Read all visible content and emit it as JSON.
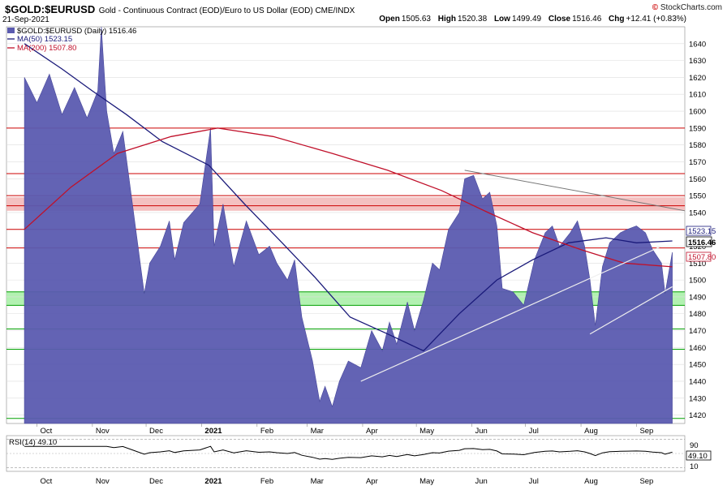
{
  "header": {
    "symbol": "$GOLD:$EURUSD",
    "description": "Gold - Continuous Contract (EOD)/Euro to US Dollar (EOD)  CME/INDX",
    "date": "21-Sep-2021",
    "brand": "StockCharts.com",
    "brand_mark": "©"
  },
  "ohlc": {
    "open_label": "Open",
    "open": "1505.63",
    "high_label": "High",
    "high": "1520.38",
    "low_label": "Low",
    "low": "1499.49",
    "close_label": "Close",
    "close": "1516.46",
    "chg_label": "Chg",
    "chg": "+12.41 (+0.83%)"
  },
  "legend": {
    "price": "$GOLD:$EURUSD (Daily) 1516.46",
    "ma50": "MA(50) 1523.15",
    "ma200": "MA(200) 1507.80",
    "rsi": "RSI(14) 49.10"
  },
  "tags": {
    "ma50": "1523.15",
    "close": "1516.46",
    "ma200": "1507.80",
    "rsi": "49.10",
    "rsi_90": "90",
    "rsi_10": "10"
  },
  "colors": {
    "area": "#5b5bb0",
    "ma50": "#1a1a7a",
    "ma200": "#c0102a",
    "resistance": "#cc0000",
    "support": "#00a000",
    "red_zone": "#f3b9b9",
    "green_zone": "#aaf0a8"
  },
  "chart_data": {
    "type": "area",
    "title": "$GOLD:$EURUSD",
    "ylim": [
      1415,
      1650
    ],
    "yticks": [
      1420,
      1430,
      1440,
      1450,
      1460,
      1470,
      1480,
      1490,
      1500,
      1510,
      1520,
      1530,
      1540,
      1550,
      1560,
      1570,
      1580,
      1590,
      1600,
      1610,
      1620,
      1630,
      1640
    ],
    "x_labels": [
      "Oct",
      "Nov",
      "Dec",
      "2021",
      "Feb",
      "Mar",
      "Apr",
      "May",
      "Jun",
      "Jul",
      "Aug",
      "Sep"
    ],
    "grid": true,
    "legend_position": "top-left",
    "price_series": [
      [
        "2020-09-24",
        1620
      ],
      [
        "2020-10-01",
        1605
      ],
      [
        "2020-10-08",
        1622
      ],
      [
        "2020-10-15",
        1598
      ],
      [
        "2020-10-22",
        1614
      ],
      [
        "2020-10-29",
        1596
      ],
      [
        "2020-11-04",
        1612
      ],
      [
        "2020-11-06",
        1650
      ],
      [
        "2020-11-09",
        1600
      ],
      [
        "2020-11-13",
        1575
      ],
      [
        "2020-11-18",
        1588
      ],
      [
        "2020-11-24",
        1540
      ],
      [
        "2020-11-30",
        1492
      ],
      [
        "2020-12-03",
        1510
      ],
      [
        "2020-12-09",
        1520
      ],
      [
        "2020-12-14",
        1535
      ],
      [
        "2020-12-17",
        1512
      ],
      [
        "2020-12-22",
        1534
      ],
      [
        "2020-12-31",
        1545
      ],
      [
        "2021-01-06",
        1590
      ],
      [
        "2021-01-08",
        1520
      ],
      [
        "2021-01-13",
        1545
      ],
      [
        "2021-01-19",
        1508
      ],
      [
        "2021-01-26",
        1535
      ],
      [
        "2021-02-02",
        1515
      ],
      [
        "2021-02-08",
        1520
      ],
      [
        "2021-02-12",
        1510
      ],
      [
        "2021-02-18",
        1500
      ],
      [
        "2021-02-22",
        1512
      ],
      [
        "2021-02-26",
        1478
      ],
      [
        "2021-03-04",
        1452
      ],
      [
        "2021-03-08",
        1428
      ],
      [
        "2021-03-11",
        1437
      ],
      [
        "2021-03-15",
        1425
      ],
      [
        "2021-03-19",
        1440
      ],
      [
        "2021-03-24",
        1452
      ],
      [
        "2021-03-31",
        1448
      ],
      [
        "2021-04-06",
        1470
      ],
      [
        "2021-04-12",
        1458
      ],
      [
        "2021-04-16",
        1475
      ],
      [
        "2021-04-20",
        1462
      ],
      [
        "2021-04-26",
        1487
      ],
      [
        "2021-04-30",
        1470
      ],
      [
        "2021-05-05",
        1488
      ],
      [
        "2021-05-10",
        1510
      ],
      [
        "2021-05-14",
        1506
      ],
      [
        "2021-05-19",
        1530
      ],
      [
        "2021-05-25",
        1540
      ],
      [
        "2021-05-28",
        1560
      ],
      [
        "2021-06-02",
        1562
      ],
      [
        "2021-06-07",
        1548
      ],
      [
        "2021-06-11",
        1552
      ],
      [
        "2021-06-15",
        1532
      ],
      [
        "2021-06-18",
        1495
      ],
      [
        "2021-06-24",
        1493
      ],
      [
        "2021-06-30",
        1485
      ],
      [
        "2021-07-06",
        1512
      ],
      [
        "2021-07-12",
        1528
      ],
      [
        "2021-07-16",
        1532
      ],
      [
        "2021-07-20",
        1520
      ],
      [
        "2021-07-26",
        1528
      ],
      [
        "2021-07-30",
        1535
      ],
      [
        "2021-08-03",
        1520
      ],
      [
        "2021-08-06",
        1500
      ],
      [
        "2021-08-09",
        1473
      ],
      [
        "2021-08-13",
        1508
      ],
      [
        "2021-08-17",
        1522
      ],
      [
        "2021-08-23",
        1528
      ],
      [
        "2021-08-27",
        1530
      ],
      [
        "2021-09-01",
        1532
      ],
      [
        "2021-09-06",
        1528
      ],
      [
        "2021-09-10",
        1518
      ],
      [
        "2021-09-15",
        1510
      ],
      [
        "2021-09-17",
        1492
      ],
      [
        "2021-09-21",
        1516.46
      ]
    ],
    "ma50": [
      [
        "2020-09-24",
        1640
      ],
      [
        "2020-10-15",
        1625
      ],
      [
        "2020-11-01",
        1612
      ],
      [
        "2020-11-20",
        1598
      ],
      [
        "2020-12-10",
        1582
      ],
      [
        "2021-01-05",
        1568
      ],
      [
        "2021-01-25",
        1545
      ],
      [
        "2021-02-15",
        1522
      ],
      [
        "2021-03-05",
        1502
      ],
      [
        "2021-03-25",
        1478
      ],
      [
        "2021-04-15",
        1468
      ],
      [
        "2021-05-05",
        1458
      ],
      [
        "2021-05-25",
        1480
      ],
      [
        "2021-06-15",
        1500
      ],
      [
        "2021-07-05",
        1512
      ],
      [
        "2021-07-25",
        1522
      ],
      [
        "2021-08-15",
        1525
      ],
      [
        "2021-09-01",
        1522
      ],
      [
        "2021-09-21",
        1523.15
      ]
    ],
    "ma200": [
      [
        "2020-09-24",
        1530
      ],
      [
        "2020-10-20",
        1555
      ],
      [
        "2020-11-15",
        1575
      ],
      [
        "2020-12-15",
        1585
      ],
      [
        "2021-01-10",
        1590
      ],
      [
        "2021-02-10",
        1585
      ],
      [
        "2021-03-15",
        1575
      ],
      [
        "2021-04-15",
        1565
      ],
      [
        "2021-05-15",
        1553
      ],
      [
        "2021-06-10",
        1540
      ],
      [
        "2021-07-05",
        1528
      ],
      [
        "2021-08-01",
        1518
      ],
      [
        "2021-08-25",
        1510
      ],
      [
        "2021-09-21",
        1507.8
      ]
    ],
    "rsi_panel": {
      "value": 49.1,
      "levels": [
        90,
        10
      ]
    }
  }
}
